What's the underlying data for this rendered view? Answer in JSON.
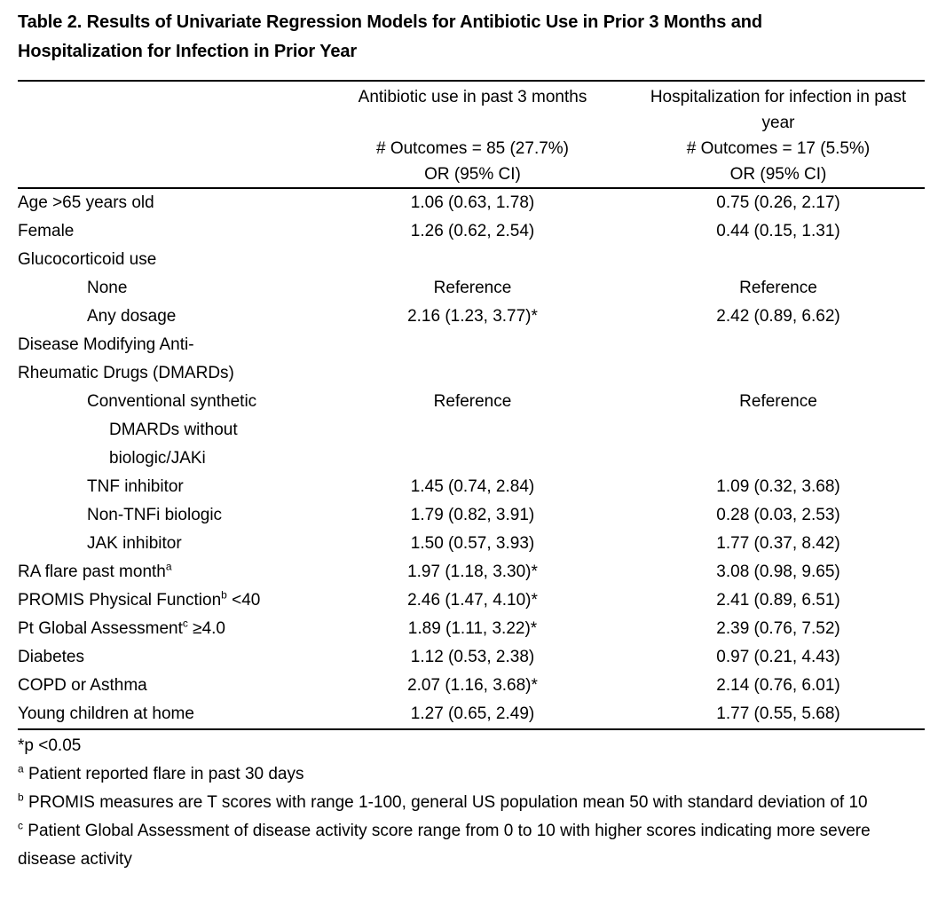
{
  "document": {
    "title_lines": [
      "Table 2. Results of Univariate Regression Models for Antibiotic Use in Prior 3 Months and",
      "Hospitalization for Infection in Prior Year"
    ]
  },
  "table": {
    "columns": [
      {
        "title": "Antibiotic use in past 3 months",
        "outcomes": "# Outcomes = 85 (27.7%)",
        "or_label": "OR (95% CI)"
      },
      {
        "title": "Hospitalization for infection in past year",
        "outcomes": "# Outcomes = 17 (5.5%)",
        "or_label": "OR (95% CI)"
      }
    ],
    "rows": [
      {
        "label_lines": [
          {
            "text": "Age >65 years old",
            "sup": "",
            "after": "",
            "indent": 0
          }
        ],
        "antibiotic": "1.06 (0.63, 1.78)",
        "hospitalization": "0.75 (0.26, 2.17)"
      },
      {
        "label_lines": [
          {
            "text": "Female",
            "sup": "",
            "after": "",
            "indent": 0
          }
        ],
        "antibiotic": "1.26 (0.62, 2.54)",
        "hospitalization": "0.44 (0.15, 1.31)"
      },
      {
        "label_lines": [
          {
            "text": "Glucocorticoid use",
            "sup": "",
            "after": "",
            "indent": 0
          }
        ],
        "antibiotic": "",
        "hospitalization": ""
      },
      {
        "label_lines": [
          {
            "text": "None",
            "sup": "",
            "after": "",
            "indent": 1
          }
        ],
        "antibiotic": "Reference",
        "hospitalization": "Reference"
      },
      {
        "label_lines": [
          {
            "text": "Any dosage",
            "sup": "",
            "after": "",
            "indent": 1
          }
        ],
        "antibiotic": "2.16 (1.23, 3.77)*",
        "hospitalization": "2.42 (0.89, 6.62)"
      },
      {
        "label_lines": [
          {
            "text": "Disease Modifying Anti-",
            "sup": "",
            "after": "",
            "indent": 0
          },
          {
            "text": "Rheumatic Drugs (DMARDs)",
            "sup": "",
            "after": "",
            "indent": 0
          }
        ],
        "antibiotic": "",
        "hospitalization": ""
      },
      {
        "label_lines": [
          {
            "text": "Conventional synthetic",
            "sup": "",
            "after": "",
            "indent": 1
          },
          {
            "text": "DMARDs without",
            "sup": "",
            "after": "",
            "indent": 2
          },
          {
            "text": "biologic/JAKi",
            "sup": "",
            "after": "",
            "indent": 2
          }
        ],
        "antibiotic": "Reference",
        "hospitalization": "Reference"
      },
      {
        "label_lines": [
          {
            "text": "TNF inhibitor",
            "sup": "",
            "after": "",
            "indent": 1
          }
        ],
        "antibiotic": "1.45 (0.74, 2.84)",
        "hospitalization": "1.09 (0.32, 3.68)"
      },
      {
        "label_lines": [
          {
            "text": "Non-TNFi biologic",
            "sup": "",
            "after": "",
            "indent": 1
          }
        ],
        "antibiotic": "1.79 (0.82, 3.91)",
        "hospitalization": "0.28 (0.03, 2.53)"
      },
      {
        "label_lines": [
          {
            "text": "JAK inhibitor",
            "sup": "",
            "after": "",
            "indent": 1
          }
        ],
        "antibiotic": "1.50 (0.57, 3.93)",
        "hospitalization": "1.77 (0.37, 8.42)"
      },
      {
        "label_lines": [
          {
            "text": "RA flare past month",
            "sup": "a",
            "after": "",
            "indent": 0
          }
        ],
        "antibiotic": "1.97 (1.18, 3.30)*",
        "hospitalization": "3.08 (0.98, 9.65)"
      },
      {
        "label_lines": [
          {
            "text": "PROMIS Physical Function",
            "sup": "b",
            "after": " <40",
            "indent": 0
          }
        ],
        "antibiotic": "2.46 (1.47, 4.10)*",
        "hospitalization": "2.41 (0.89, 6.51)"
      },
      {
        "label_lines": [
          {
            "text": "Pt Global Assessment",
            "sup": "c",
            "after": " ≥4.0",
            "indent": 0
          }
        ],
        "antibiotic": "1.89 (1.11, 3.22)*",
        "hospitalization": "2.39 (0.76, 7.52)"
      },
      {
        "label_lines": [
          {
            "text": "Diabetes",
            "sup": "",
            "after": "",
            "indent": 0
          }
        ],
        "antibiotic": "1.12 (0.53, 2.38)",
        "hospitalization": "0.97 (0.21, 4.43)"
      },
      {
        "label_lines": [
          {
            "text": "COPD or Asthma",
            "sup": "",
            "after": "",
            "indent": 0
          }
        ],
        "antibiotic": "2.07 (1.16, 3.68)*",
        "hospitalization": "2.14 (0.76, 6.01)"
      },
      {
        "label_lines": [
          {
            "text": "Young children at home",
            "sup": "",
            "after": "",
            "indent": 0
          }
        ],
        "antibiotic": "1.27 (0.65, 2.49)",
        "hospitalization": "1.77 (0.55, 5.68)"
      }
    ]
  },
  "footnotes": [
    {
      "marker": "*",
      "superscript": false,
      "text": "p <0.05"
    },
    {
      "marker": "a",
      "superscript": true,
      "text": "Patient reported flare in past 30 days"
    },
    {
      "marker": "b",
      "superscript": true,
      "text": "PROMIS measures are T scores with range 1-100, general US population mean 50 with standard deviation of 10"
    },
    {
      "marker": "c",
      "superscript": true,
      "text": "Patient Global Assessment of disease activity score range from 0 to 10 with higher scores indicating more severe disease activity"
    }
  ]
}
